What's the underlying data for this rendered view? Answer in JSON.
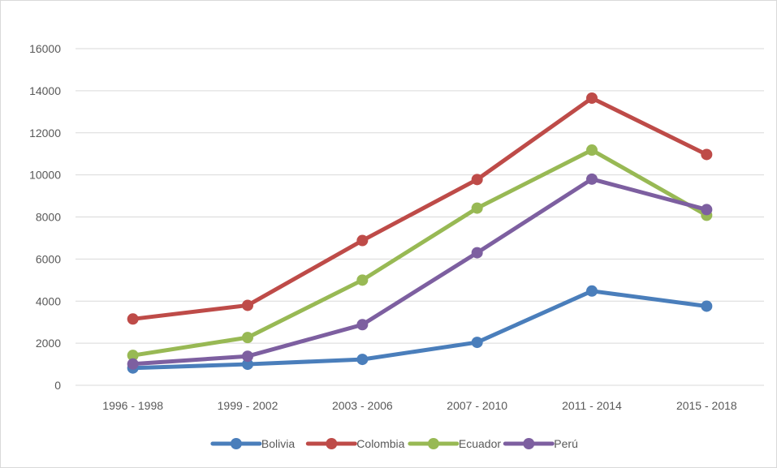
{
  "chart_data": {
    "type": "line",
    "categories": [
      "1996 - 1998",
      "1999 - 2002",
      "2003 - 2006",
      "2007 - 2010",
      "2011 - 2014",
      "2015 - 2018"
    ],
    "ylim": [
      0,
      16000
    ],
    "yticks": [
      0,
      2000,
      4000,
      6000,
      8000,
      10000,
      12000,
      14000,
      16000
    ],
    "grid": true,
    "legend_position": "bottom",
    "series": [
      {
        "name": "Bolivia",
        "color": "#4a7ebb",
        "values": [
          820,
          1000,
          1230,
          2040,
          4480,
          3760
        ]
      },
      {
        "name": "Colombia",
        "color": "#be4b48",
        "values": [
          3150,
          3800,
          6880,
          9780,
          13650,
          10970
        ]
      },
      {
        "name": "Ecuador",
        "color": "#98b954",
        "values": [
          1420,
          2270,
          5000,
          8420,
          11180,
          8080
        ]
      },
      {
        "name": "Perú",
        "color": "#7d5fa0",
        "values": [
          1010,
          1380,
          2880,
          6300,
          9800,
          8350
        ]
      }
    ]
  }
}
